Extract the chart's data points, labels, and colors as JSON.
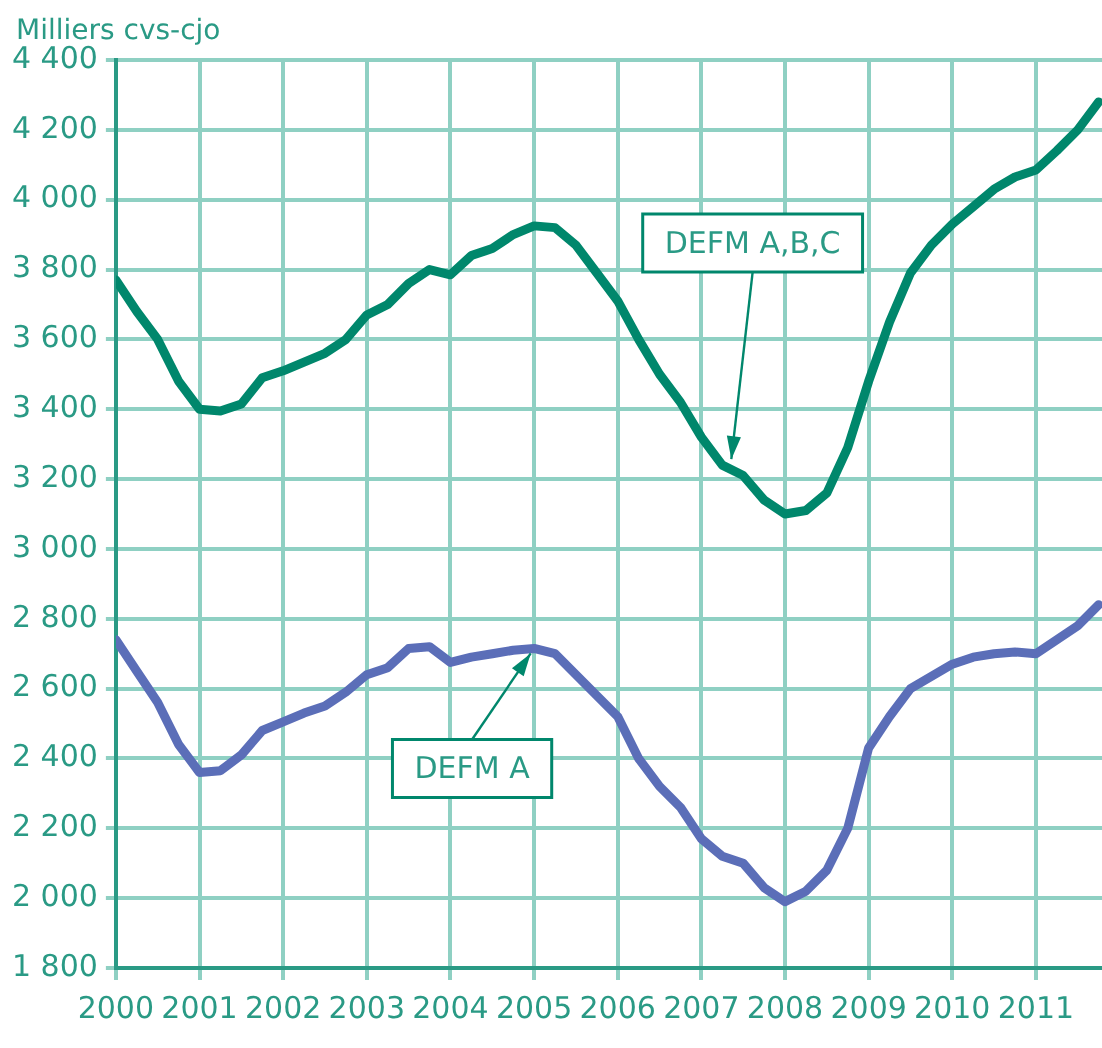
{
  "chart_data": {
    "type": "line",
    "ylabel": "Milliers cvs-cjo",
    "x": [
      2000,
      2000.25,
      2000.5,
      2000.75,
      2001,
      2001.25,
      2001.5,
      2001.75,
      2002,
      2002.25,
      2002.5,
      2002.75,
      2003,
      2003.25,
      2003.5,
      2003.75,
      2004,
      2004.25,
      2004.5,
      2004.75,
      2005,
      2005.25,
      2005.5,
      2005.75,
      2006,
      2006.25,
      2006.5,
      2006.75,
      2007,
      2007.25,
      2007.5,
      2007.75,
      2008,
      2008.25,
      2008.5,
      2008.75,
      2009,
      2009.25,
      2009.5,
      2009.75,
      2010,
      2010.25,
      2010.5,
      2010.75,
      2011,
      2011.25,
      2011.5,
      2011.75
    ],
    "series": [
      {
        "color": "#00876c",
        "values": [
          3770,
          3680,
          3600,
          3480,
          3400,
          3395,
          3415,
          3490,
          3510,
          3535,
          3560,
          3600,
          3670,
          3700,
          3760,
          3800,
          3785,
          3840,
          3860,
          3900,
          3925,
          3920,
          3870,
          3790,
          3710,
          3600,
          3500,
          3420,
          3320,
          3240,
          3210,
          3140,
          3100,
          3110,
          3160,
          3290,
          3480,
          3650,
          3790,
          3870,
          3930,
          3980,
          4030,
          4065,
          4085,
          4140,
          4200,
          4280
        ]
      },
      {
        "color": "#5b6eb8",
        "values": [
          2740,
          2650,
          2560,
          2440,
          2360,
          2365,
          2410,
          2480,
          2505,
          2530,
          2550,
          2590,
          2640,
          2660,
          2715,
          2720,
          2675,
          2690,
          2700,
          2710,
          2715,
          2700,
          2640,
          2580,
          2520,
          2400,
          2320,
          2260,
          2170,
          2120,
          2100,
          2030,
          1990,
          2020,
          2080,
          2200,
          2430,
          2520,
          2600,
          2635,
          2670,
          2690,
          2700,
          2705,
          2700,
          2740,
          2780,
          2840
        ]
      }
    ],
    "xlim": [
      2000,
      2011.79
    ],
    "xticks": [
      2000,
      2001,
      2002,
      2003,
      2004,
      2005,
      2006,
      2007,
      2008,
      2009,
      2010,
      2011
    ],
    "ylim": [
      1800,
      4400
    ],
    "yticks": [
      {
        "value": 1800,
        "label": "1 800"
      },
      {
        "value": 2000,
        "label": "2 000"
      },
      {
        "value": 2200,
        "label": "2 200"
      },
      {
        "value": 2400,
        "label": "2 400"
      },
      {
        "value": 2600,
        "label": "2 600"
      },
      {
        "value": 2800,
        "label": "2 800"
      },
      {
        "value": 3000,
        "label": "3 000"
      },
      {
        "value": 3200,
        "label": "3 200"
      },
      {
        "value": 3400,
        "label": "3 400"
      },
      {
        "value": 3600,
        "label": "3 600"
      },
      {
        "value": 3800,
        "label": "3 800"
      },
      {
        "value": 4000,
        "label": "4 000"
      },
      {
        "value": 4200,
        "label": "4 200"
      },
      {
        "value": 4400,
        "label": "4 400"
      }
    ],
    "annotations": [
      {
        "text": "DEFM A,B,C",
        "x": 2007.35,
        "y": 3240
      },
      {
        "text": "DEFM A",
        "x": 2005.0,
        "y": 2715
      }
    ],
    "grid": true,
    "legend": false,
    "marker": "none",
    "line_style": "solid"
  }
}
